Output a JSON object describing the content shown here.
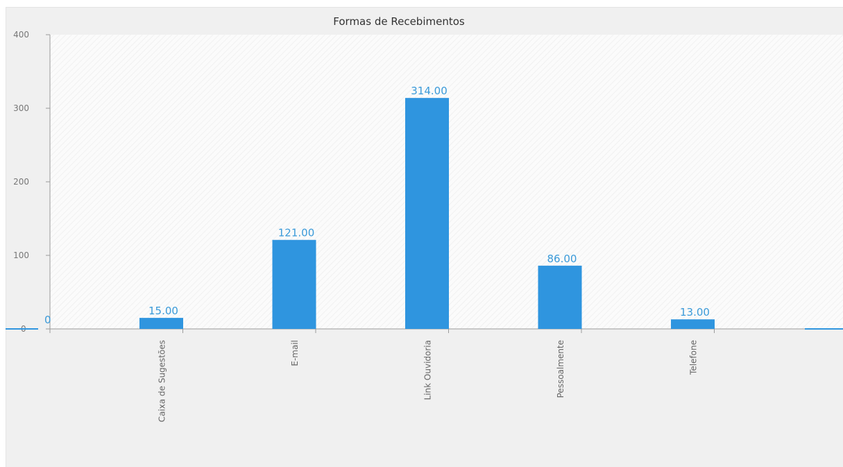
{
  "chart_data": {
    "type": "bar",
    "title": "Formas de Recebimentos",
    "categories": [
      "Caixa de Sugestões",
      "E-mail",
      "Link Ouvidoria",
      "Pessoalmente",
      "Telefone"
    ],
    "values": [
      15,
      121,
      314,
      86,
      13
    ],
    "data_labels": [
      "15.00",
      "121.00",
      "314.00",
      "86.00",
      "13.00"
    ],
    "yticks": [
      0,
      100,
      200,
      300,
      400
    ],
    "ylim": [
      0,
      400
    ],
    "zero_label": "0",
    "xlabel": "",
    "ylabel": "",
    "grid": false,
    "bar_color": "#2f95df",
    "label_color": "#3a9ad9"
  }
}
